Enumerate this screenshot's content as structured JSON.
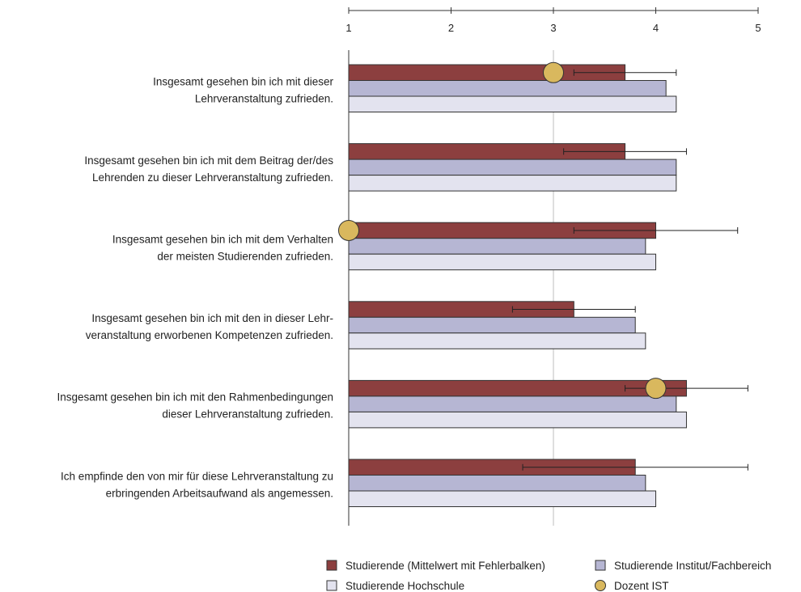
{
  "chart_data": {
    "type": "bar",
    "orientation": "horizontal",
    "xlim": [
      1,
      5
    ],
    "xticks": [
      "1",
      "2",
      "3",
      "4",
      "5"
    ],
    "grid": "vertical line at 3",
    "legend_position": "bottom-right",
    "colors": {
      "studierende": "#8c3f3f",
      "institut": "#b6b6d3",
      "hochschule": "#e3e3ef",
      "dozent": "#d9b85e",
      "edge": "#333333"
    },
    "categories": [
      [
        "Insgesamt gesehen bin ich mit dieser",
        "Lehrveranstaltung zufrieden."
      ],
      [
        "Insgesamt gesehen bin ich mit dem Beitrag der/des",
        "Lehrenden zu dieser Lehrveranstaltung zufrieden."
      ],
      [
        "Insgesamt gesehen bin ich mit dem Verhalten",
        "der meisten Studierenden zufrieden."
      ],
      [
        "Insgesamt gesehen bin ich mit den in dieser Lehr-",
        "veranstaltung erworbenen Kompetenzen zufrieden."
      ],
      [
        "Insgesamt gesehen bin ich mit den Rahmenbedingungen",
        "dieser Lehrveranstaltung zufrieden."
      ],
      [
        "Ich empfinde den von mir für diese Lehrveranstaltung zu",
        "erbringenden Arbeitsaufwand als angemessen."
      ]
    ],
    "series": [
      {
        "key": "studierende",
        "name": "Studierende (Mittelwert mit Fehlerbalken)",
        "values": [
          3.7,
          3.7,
          4.0,
          3.2,
          4.3,
          3.8
        ],
        "error_low": [
          3.2,
          3.1,
          3.2,
          2.6,
          3.7,
          2.7
        ],
        "error_high": [
          4.2,
          4.3,
          4.8,
          3.8,
          4.9,
          4.9
        ]
      },
      {
        "key": "institut",
        "name": "Studierende Institut/Fachbereich",
        "values": [
          4.1,
          4.2,
          3.9,
          3.8,
          4.2,
          3.9
        ]
      },
      {
        "key": "hochschule",
        "name": "Studierende Hochschule",
        "values": [
          4.2,
          4.2,
          4.0,
          3.9,
          4.3,
          4.0
        ]
      },
      {
        "key": "dozent",
        "name": "Dozent IST",
        "values": [
          3.0,
          null,
          1.0,
          null,
          4.0,
          null
        ]
      }
    ]
  }
}
